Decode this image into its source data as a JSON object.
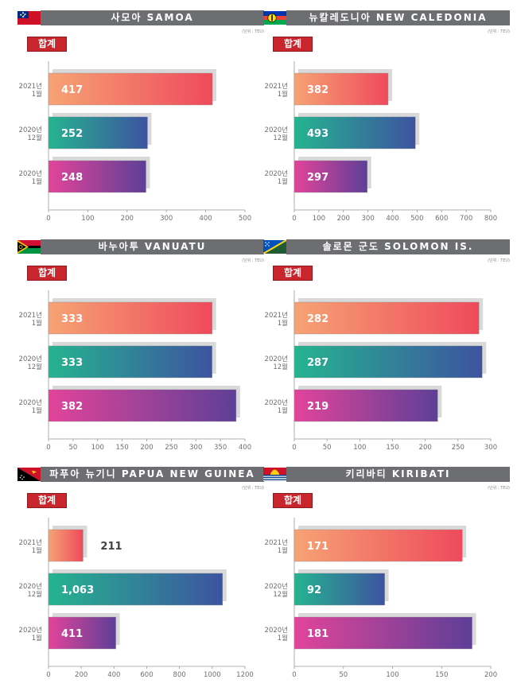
{
  "unit_label": "(단위 : TEU)",
  "badge_label": "합계",
  "colors": {
    "header": "#6d6e71",
    "badge": "#c8252c",
    "row0": [
      "#f6a374",
      "#ef4a5c"
    ],
    "row1": [
      "#25b490",
      "#3d53a0"
    ],
    "row2": [
      "#e2449a",
      "#5e3f97"
    ],
    "shadow": "#d9d9d9"
  },
  "chart_data": [
    {
      "type": "bar",
      "title": "사모아 SAMOA",
      "flag": "samoa-flag",
      "categories": [
        [
          "2021년",
          "1월"
        ],
        [
          "2020년",
          "12월"
        ],
        [
          "2020년",
          "1월"
        ]
      ],
      "values": [
        417,
        252,
        248
      ],
      "value_labels": [
        "417",
        "252",
        "248"
      ],
      "xlim": [
        0,
        500
      ],
      "ticks": [
        "0",
        "100",
        "200",
        "300",
        "400",
        "500"
      ]
    },
    {
      "type": "bar",
      "title": "뉴칼레도니아 NEW CALEDONIA",
      "flag": "new-caledonia-flag",
      "categories": [
        [
          "2021년",
          "1월"
        ],
        [
          "2020년",
          "12월"
        ],
        [
          "2020년",
          "1월"
        ]
      ],
      "values": [
        382,
        493,
        297
      ],
      "value_labels": [
        "382",
        "493",
        "297"
      ],
      "xlim": [
        0,
        800
      ],
      "ticks": [
        "0",
        "100",
        "200",
        "300",
        "400",
        "500",
        "600",
        "700",
        "800"
      ]
    },
    {
      "type": "bar",
      "title": "바누아투 VANUATU",
      "flag": "vanuatu-flag",
      "categories": [
        [
          "2021년",
          "1월"
        ],
        [
          "2020년",
          "12월"
        ],
        [
          "2020년",
          "1월"
        ]
      ],
      "values": [
        333,
        333,
        382
      ],
      "value_labels": [
        "333",
        "333",
        "382"
      ],
      "xlim": [
        0,
        400
      ],
      "ticks": [
        "0",
        "50",
        "100",
        "150",
        "200",
        "250",
        "300",
        "350",
        "400"
      ]
    },
    {
      "type": "bar",
      "title": "솔로몬 군도 SOLOMON IS.",
      "flag": "solomon-islands-flag",
      "categories": [
        [
          "2021년",
          "1월"
        ],
        [
          "2020년",
          "12월"
        ],
        [
          "2020년",
          "1월"
        ]
      ],
      "values": [
        282,
        287,
        219
      ],
      "value_labels": [
        "282",
        "287",
        "219"
      ],
      "xlim": [
        0,
        300
      ],
      "ticks": [
        "0",
        "50",
        "100",
        "150",
        "200",
        "250",
        "300"
      ]
    },
    {
      "type": "bar",
      "title": "파푸아 뉴기니 PAPUA NEW GUINEA",
      "flag": "papua-new-guinea-flag",
      "categories": [
        [
          "2021년",
          "1월"
        ],
        [
          "2020년",
          "12월"
        ],
        [
          "2020년",
          "1월"
        ]
      ],
      "values": [
        211,
        1063,
        411
      ],
      "value_labels": [
        "211",
        "1,063",
        "411"
      ],
      "xlim": [
        0,
        1200
      ],
      "ticks": [
        "0",
        "200",
        "400",
        "600",
        "800",
        "1000",
        "1200"
      ]
    },
    {
      "type": "bar",
      "title": "키리바티 KIRIBATI",
      "flag": "kiribati-flag",
      "categories": [
        [
          "2021년",
          "1월"
        ],
        [
          "2020년",
          "12월"
        ],
        [
          "2020년",
          "1월"
        ]
      ],
      "values": [
        171,
        92,
        181
      ],
      "value_labels": [
        "171",
        "92",
        "181"
      ],
      "xlim": [
        0,
        200
      ],
      "ticks": [
        "0",
        "50",
        "100",
        "150",
        "200"
      ]
    }
  ]
}
